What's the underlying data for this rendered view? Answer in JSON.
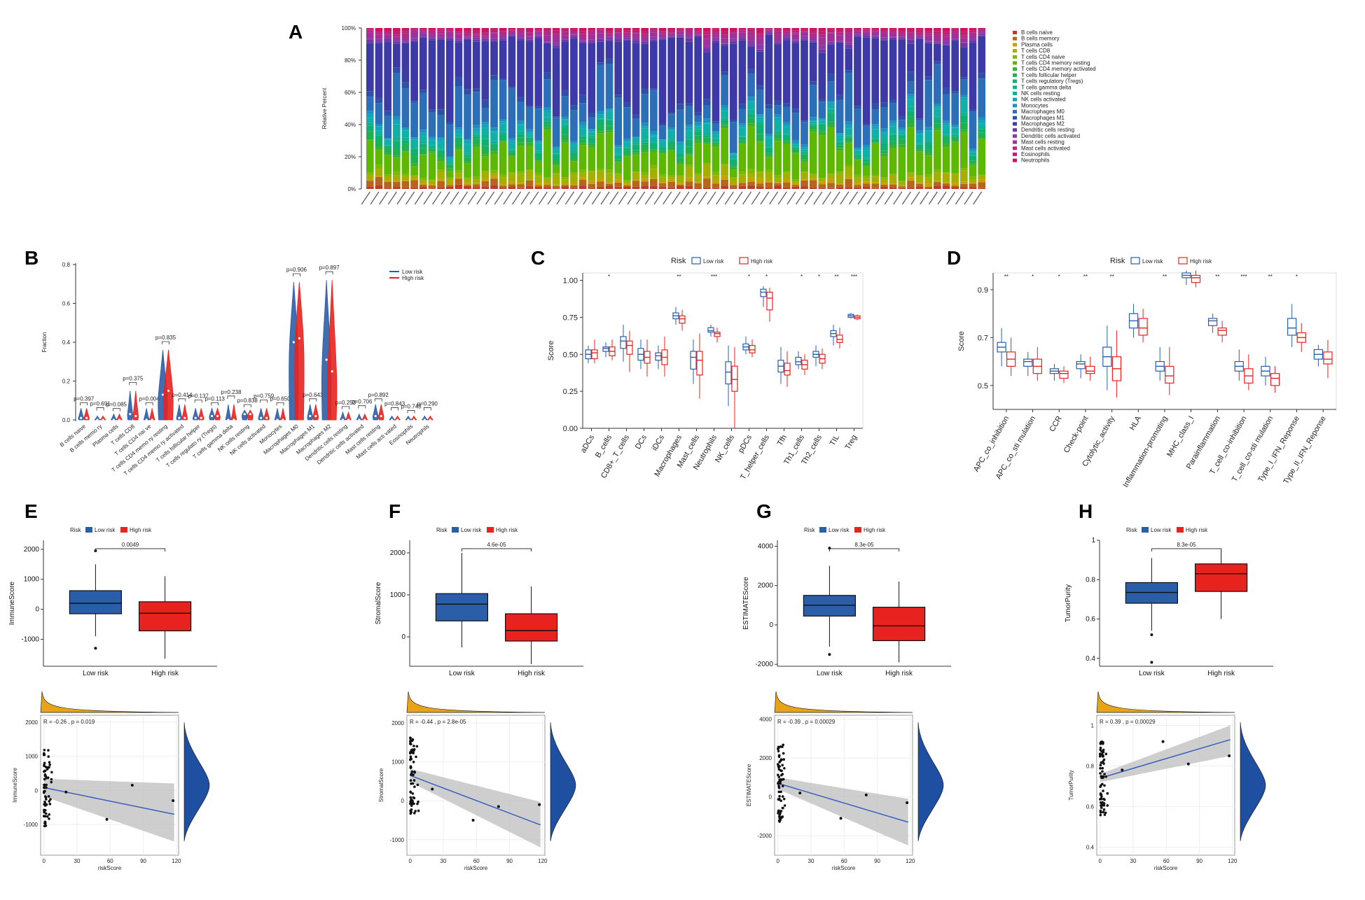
{
  "panels": {
    "A": "A",
    "B": "B",
    "C": "C",
    "D": "D",
    "E": "E",
    "F": "F",
    "G": "G",
    "H": "H"
  },
  "colors": {
    "low": "#2b5ea8",
    "high": "#e8221e",
    "fit": "#3a5fbf",
    "dens": "#1f4fa0",
    "hist": "#e8a316"
  },
  "chart_data": [
    {
      "id": "A",
      "type": "bar",
      "stacked": true,
      "ylabel": "Relative Percent",
      "yticks": [
        "0%",
        "20%",
        "40%",
        "60%",
        "80%",
        "100%"
      ],
      "legend": [
        "B cells naive",
        "B cells memory",
        "Plasma cells",
        "T cells CD8",
        "T cells CD4 naive",
        "T cells CD4 memory resting",
        "T cells CD4 memory activated",
        "T cells follicular helper",
        "T cells regulatory (Tregs)",
        "T cells gamma delta",
        "NK cells resting",
        "NK cells activated",
        "Monocytes",
        "Macrophages M0",
        "Macrophages M1",
        "Macrophages M2",
        "Dendritic cells resting",
        "Dendritic cells activated",
        "Mast cells resting",
        "Mast cells activated",
        "Eosinophils",
        "Neutrophils"
      ],
      "legend_colors": [
        "#c0392b",
        "#b5651d",
        "#c8a000",
        "#a4b000",
        "#7fb800",
        "#5cb800",
        "#38b030",
        "#20b050",
        "#10b070",
        "#10b090",
        "#10b0a8",
        "#10a8b8",
        "#1e90c0",
        "#2a6fb8",
        "#3050a8",
        "#3d3aa8",
        "#6a3aa8",
        "#8a3aa8",
        "#a0309a",
        "#b02a8a",
        "#c02070",
        "#d01060"
      ],
      "n_samples": 70
    },
    {
      "id": "B",
      "type": "violin",
      "ylabel": "Fraction",
      "ylim": [
        0,
        0.8
      ],
      "yticks": [
        "0.0",
        "0.2",
        "0.4",
        "0.6",
        "0.8"
      ],
      "legend": [
        "Low risk",
        "High risk"
      ],
      "categories": [
        "B cells naive",
        "B cells memo ry",
        "Plasma cells",
        "T cells CD8",
        "T cells CD4 nai ve",
        "T cells CD4 memo ry resting",
        "T cells CD4 memo ry activated",
        "T cells follicular helper",
        "T cells regulato ry (Tregs)",
        "T cells gamma delta",
        "NK cells resting",
        "NK cells activated",
        "Monocytes",
        "Macrophages M0",
        "Macrophages M1",
        "Macrophages M2",
        "Dendritic cells resting",
        "Dendritic cells activated",
        "Mast cells resting",
        "Mast cells acti vated",
        "Eosinophils",
        "Neutrophils"
      ],
      "highlight_index": 4,
      "pvalues": [
        "p=0.397",
        "p=0.691",
        "p=0.085",
        "p=0.375",
        "p=0.004",
        "p=0.835",
        "p=0.414",
        "p=0.137",
        "p=0.113",
        "p=0.238",
        "p=0.838",
        "p=0.759",
        "p=0.650",
        "p=0.906",
        "p=0.643",
        "p=0.897",
        "p=0.253",
        "p=0.706",
        "p=0.892",
        "p=0.843",
        "p=0.748",
        "p=0.290"
      ],
      "low_median": [
        0.01,
        0.0,
        0.0,
        0.03,
        0.0,
        0.13,
        0.01,
        0.01,
        0.02,
        0.0,
        0.03,
        0.01,
        0.0,
        0.4,
        0.02,
        0.31,
        0.0,
        0.0,
        0.02,
        0.0,
        0.0,
        0.0
      ],
      "high_median": [
        0.01,
        0.0,
        0.0,
        0.02,
        0.0,
        0.15,
        0.01,
        0.01,
        0.02,
        0.0,
        0.03,
        0.01,
        0.0,
        0.42,
        0.02,
        0.25,
        0.0,
        0.0,
        0.02,
        0.0,
        0.0,
        0.0
      ],
      "max": [
        0.06,
        0.02,
        0.03,
        0.15,
        0.06,
        0.36,
        0.08,
        0.06,
        0.06,
        0.08,
        0.05,
        0.06,
        0.06,
        0.71,
        0.08,
        0.72,
        0.04,
        0.03,
        0.08,
        0.02,
        0.02,
        0.02
      ]
    },
    {
      "id": "C",
      "type": "box",
      "ylabel": "Score",
      "legend_title": "Risk",
      "legend": [
        "Low risk",
        "High risk"
      ],
      "ylim": [
        0,
        1.05
      ],
      "yticks": [
        "0.00",
        "0.25",
        "0.50",
        "0.75",
        "1.00"
      ],
      "categories": [
        "aDCs",
        "B_cells",
        "CD8+_T_cells",
        "DCs",
        "iDCs",
        "Macrophages",
        "Mast_cells",
        "Neutrophils",
        "NK_cells",
        "pDCs",
        "T_helper_cells",
        "Tfh",
        "Th1_cells",
        "Th2_cells",
        "TIL",
        "Treg"
      ],
      "sig": [
        "",
        "*",
        "",
        "",
        "",
        "**",
        "",
        "***",
        "",
        "*",
        "*",
        "",
        "*",
        "*",
        "**",
        "***"
      ],
      "low": [
        [
          0.44,
          0.47,
          0.5,
          0.53,
          0.56
        ],
        [
          0.48,
          0.52,
          0.54,
          0.55,
          0.58
        ],
        [
          0.45,
          0.54,
          0.59,
          0.62,
          0.7
        ],
        [
          0.4,
          0.46,
          0.5,
          0.54,
          0.6
        ],
        [
          0.4,
          0.46,
          0.49,
          0.51,
          0.56
        ],
        [
          0.7,
          0.74,
          0.76,
          0.78,
          0.82
        ],
        [
          0.3,
          0.4,
          0.48,
          0.52,
          0.6
        ],
        [
          0.62,
          0.65,
          0.66,
          0.68,
          0.7
        ],
        [
          0.15,
          0.3,
          0.38,
          0.45,
          0.56
        ],
        [
          0.5,
          0.53,
          0.55,
          0.57,
          0.62
        ],
        [
          0.82,
          0.89,
          0.92,
          0.94,
          0.96
        ],
        [
          0.3,
          0.38,
          0.42,
          0.46,
          0.55
        ],
        [
          0.4,
          0.43,
          0.45,
          0.48,
          0.52
        ],
        [
          0.42,
          0.48,
          0.5,
          0.52,
          0.56
        ],
        [
          0.56,
          0.62,
          0.64,
          0.66,
          0.7
        ],
        [
          0.74,
          0.75,
          0.76,
          0.77,
          0.78
        ]
      ],
      "high": [
        [
          0.44,
          0.47,
          0.51,
          0.53,
          0.6
        ],
        [
          0.46,
          0.49,
          0.52,
          0.55,
          0.6
        ],
        [
          0.38,
          0.5,
          0.56,
          0.59,
          0.66
        ],
        [
          0.35,
          0.44,
          0.48,
          0.52,
          0.6
        ],
        [
          0.35,
          0.43,
          0.48,
          0.53,
          0.62
        ],
        [
          0.66,
          0.71,
          0.74,
          0.76,
          0.8
        ],
        [
          0.2,
          0.36,
          0.46,
          0.52,
          0.64
        ],
        [
          0.58,
          0.62,
          0.64,
          0.65,
          0.68
        ],
        [
          0.0,
          0.25,
          0.33,
          0.42,
          0.55
        ],
        [
          0.48,
          0.51,
          0.53,
          0.56,
          0.6
        ],
        [
          0.72,
          0.8,
          0.88,
          0.92,
          0.95
        ],
        [
          0.28,
          0.36,
          0.39,
          0.44,
          0.52
        ],
        [
          0.36,
          0.4,
          0.43,
          0.46,
          0.5
        ],
        [
          0.4,
          0.44,
          0.47,
          0.5,
          0.54
        ],
        [
          0.54,
          0.58,
          0.6,
          0.63,
          0.68
        ],
        [
          0.73,
          0.74,
          0.75,
          0.76,
          0.77
        ]
      ]
    },
    {
      "id": "D",
      "type": "box",
      "ylabel": "Score",
      "legend_title": "Risk",
      "legend": [
        "Low risk",
        "High risk"
      ],
      "ylim": [
        0.4,
        0.97
      ],
      "yticks": [
        "0.5",
        "0.7",
        "0.9"
      ],
      "categories": [
        "APC_co_inhibition",
        "APC_co_sti mulation",
        "CCR",
        "Check-point",
        "Cytolytic_activity",
        "HLA",
        "Inflammation-promoting",
        "MHC_class_I",
        "Parainflammation",
        "T_cell_co-inhibition",
        "T_cell_co-sti mulation",
        "Type_I_IFN_Reponse",
        "Type_II_IFN_Reponse"
      ],
      "sig": [
        "**",
        "*",
        "*",
        "**",
        "**",
        "",
        "**",
        "",
        "**",
        "***",
        "**",
        "*",
        ""
      ],
      "low": [
        [
          0.58,
          0.64,
          0.66,
          0.68,
          0.74
        ],
        [
          0.54,
          0.58,
          0.6,
          0.61,
          0.64
        ],
        [
          0.52,
          0.55,
          0.56,
          0.57,
          0.59
        ],
        [
          0.53,
          0.57,
          0.59,
          0.6,
          0.63
        ],
        [
          0.48,
          0.58,
          0.62,
          0.66,
          0.75
        ],
        [
          0.7,
          0.74,
          0.77,
          0.8,
          0.84
        ],
        [
          0.52,
          0.56,
          0.58,
          0.6,
          0.66
        ],
        [
          0.92,
          0.95,
          0.96,
          0.97,
          0.98
        ],
        [
          0.72,
          0.75,
          0.77,
          0.78,
          0.8
        ],
        [
          0.52,
          0.56,
          0.58,
          0.6,
          0.65
        ],
        [
          0.5,
          0.54,
          0.56,
          0.58,
          0.62
        ],
        [
          0.66,
          0.71,
          0.74,
          0.78,
          0.84
        ],
        [
          0.58,
          0.61,
          0.63,
          0.65,
          0.67
        ]
      ],
      "high": [
        [
          0.54,
          0.58,
          0.61,
          0.64,
          0.7
        ],
        [
          0.52,
          0.55,
          0.58,
          0.61,
          0.66
        ],
        [
          0.51,
          0.53,
          0.55,
          0.56,
          0.58
        ],
        [
          0.52,
          0.55,
          0.56,
          0.58,
          0.62
        ],
        [
          0.45,
          0.52,
          0.57,
          0.62,
          0.73
        ],
        [
          0.68,
          0.71,
          0.74,
          0.78,
          0.82
        ],
        [
          0.46,
          0.51,
          0.54,
          0.58,
          0.66
        ],
        [
          0.91,
          0.93,
          0.95,
          0.96,
          0.98
        ],
        [
          0.68,
          0.71,
          0.73,
          0.74,
          0.77
        ],
        [
          0.48,
          0.51,
          0.54,
          0.57,
          0.63
        ],
        [
          0.47,
          0.5,
          0.53,
          0.55,
          0.58
        ],
        [
          0.64,
          0.68,
          0.7,
          0.72,
          0.76
        ],
        [
          0.53,
          0.59,
          0.61,
          0.64,
          0.69
        ]
      ]
    },
    {
      "id": "E",
      "type": "box",
      "ylabel": "ImmuneScore",
      "legend_title": "Risk",
      "legend": [
        "Low risk",
        "High risk"
      ],
      "categories": [
        "Low risk",
        "High risk"
      ],
      "pvalue": "0.0049",
      "ylim": [
        -1900,
        2300
      ],
      "yticks": [
        -1000,
        0,
        1000,
        2000
      ],
      "boxes": [
        [
          -900,
          -150,
          200,
          620,
          1500
        ],
        [
          -1650,
          -720,
          -130,
          250,
          1100
        ]
      ],
      "outliers": [
        [
          1950,
          -1300
        ],
        []
      ],
      "scatter": {
        "r_text": "R = -0.26 , p = 0.019",
        "ylabel": "ImmuneScore",
        "xlabel": "riskScore",
        "xticks": [
          0,
          30,
          60,
          90,
          120
        ],
        "yticks": [
          -1000,
          0,
          1000,
          2000
        ],
        "ylim": [
          -1900,
          2200
        ],
        "xlim": [
          -3,
          122
        ],
        "fit": [
          [
            0,
            80
          ],
          [
            118,
            -700
          ]
        ],
        "band_lo": [
          -180,
          -1500
        ],
        "band_hi": [
          340,
          200
        ],
        "extra_points": [
          [
            20,
            -50
          ],
          [
            57,
            -850
          ],
          [
            80,
            150
          ],
          [
            117,
            -300
          ]
        ]
      }
    },
    {
      "id": "F",
      "type": "box",
      "ylabel": "StromalScore",
      "legend_title": "Risk",
      "legend": [
        "Low risk",
        "High risk"
      ],
      "categories": [
        "Low risk",
        "High risk"
      ],
      "pvalue": "4.6e-05",
      "ylim": [
        -700,
        2300
      ],
      "yticks": [
        0,
        1000,
        2000
      ],
      "boxes": [
        [
          -250,
          380,
          780,
          1030,
          2000
        ],
        [
          -650,
          -100,
          150,
          550,
          1200
        ]
      ],
      "outliers": [
        [],
        []
      ],
      "scatter": {
        "r_text": "R = -0.44 , p = 2.8e-05",
        "ylabel": "StromalScore",
        "xlabel": "riskScore",
        "xticks": [
          0,
          30,
          60,
          90,
          120
        ],
        "yticks": [
          -1000,
          0,
          1000,
          2000
        ],
        "ylim": [
          -1400,
          2200
        ],
        "xlim": [
          -3,
          122
        ],
        "fit": [
          [
            0,
            650
          ],
          [
            118,
            -620
          ]
        ],
        "band_lo": [
          480,
          -1200
        ],
        "band_hi": [
          820,
          -30
        ],
        "extra_points": [
          [
            20,
            300
          ],
          [
            57,
            -500
          ],
          [
            80,
            -150
          ],
          [
            117,
            -100
          ]
        ]
      }
    },
    {
      "id": "G",
      "type": "box",
      "ylabel": "ESTIMATEScore",
      "legend_title": "Risk",
      "legend": [
        "Low risk",
        "High risk"
      ],
      "categories": [
        "Low risk",
        "High risk"
      ],
      "pvalue": "8.3e-05",
      "ylim": [
        -2100,
        4300
      ],
      "yticks": [
        -2000,
        0,
        2000,
        4000
      ],
      "boxes": [
        [
          -1100,
          450,
          1000,
          1500,
          3000
        ],
        [
          -1900,
          -800,
          -50,
          900,
          2200
        ]
      ],
      "outliers": [
        [
          3900,
          -1500
        ],
        []
      ],
      "scatter": {
        "r_text": "R = -0.39 , p = 0.00029",
        "ylabel": "ESTIMATEScore",
        "xlabel": "riskScore",
        "xticks": [
          0,
          30,
          60,
          90,
          120
        ],
        "yticks": [
          -2000,
          0,
          2000,
          4000
        ],
        "ylim": [
          -3000,
          4200
        ],
        "xlim": [
          -3,
          122
        ],
        "fit": [
          [
            0,
            700
          ],
          [
            118,
            -1300
          ]
        ],
        "band_lo": [
          400,
          -2500
        ],
        "band_hi": [
          1000,
          -100
        ],
        "extra_points": [
          [
            20,
            200
          ],
          [
            57,
            -1100
          ],
          [
            80,
            100
          ],
          [
            117,
            -300
          ]
        ]
      }
    },
    {
      "id": "H",
      "type": "box",
      "ylabel": "TumorPurity",
      "legend_title": "Risk",
      "legend": [
        "Low risk",
        "High risk"
      ],
      "categories": [
        "Low risk",
        "High risk"
      ],
      "pvalue": "8.3e-05",
      "ylim": [
        0.36,
        1.0
      ],
      "yticks": [
        0.4,
        0.6,
        0.8,
        1.0
      ],
      "boxes": [
        [
          0.54,
          0.68,
          0.735,
          0.785,
          0.91
        ],
        [
          0.6,
          0.74,
          0.83,
          0.88,
          0.95
        ]
      ],
      "outliers": [
        [
          0.52,
          0.38
        ],
        []
      ],
      "scatter": {
        "r_text": "R = 0.39 , p = 0.00029",
        "ylabel": "TumorPurity",
        "xlabel": "riskScore",
        "xticks": [
          0,
          30,
          60,
          90,
          120
        ],
        "yticks": [
          0.4,
          0.6,
          0.8,
          1.0
        ],
        "ylim": [
          0.36,
          1.05
        ],
        "xlim": [
          -3,
          122
        ],
        "fit": [
          [
            0,
            0.74
          ],
          [
            118,
            0.93
          ]
        ],
        "band_lo": [
          0.72,
          0.85
        ],
        "band_hi": [
          0.76,
          1.0
        ],
        "extra_points": [
          [
            20,
            0.78
          ],
          [
            57,
            0.92
          ],
          [
            80,
            0.81
          ],
          [
            117,
            0.85
          ]
        ]
      }
    }
  ]
}
